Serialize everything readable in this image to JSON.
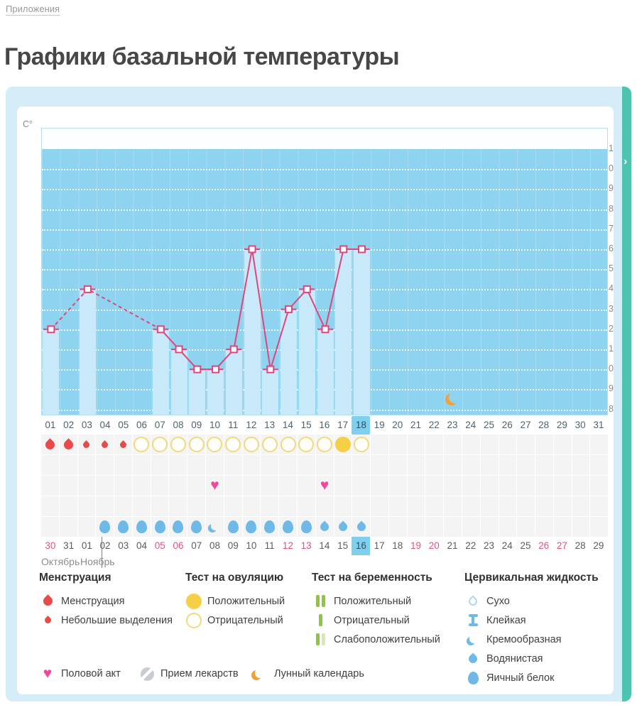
{
  "page": {
    "breadcrumb": "Приложения",
    "title": "Графики базальной температуры"
  },
  "icons": {
    "chevron_right": "›"
  },
  "colors": {
    "panel_blue": "#d5edf8",
    "accent_teal": "#4dc4ae",
    "plot_blue": "#8ed4f0",
    "bar_blue": "#c7e9f9",
    "line_pink": "#e0457c",
    "highlight_blue": "#7fd0ef",
    "menses_red": "#e84a4a",
    "test_yellow": "#f6cf49",
    "heart_pink": "#f0489c",
    "fluid_blue": "#6fb9e8",
    "weekend_red": "#e05578",
    "moon_orange": "#f2a13a",
    "pregnancy_green": "#8cc63e"
  },
  "chart_data": {
    "type": "line",
    "title": "",
    "xlabel": "",
    "ylabel": "C°",
    "ylim": [
      35.8,
      37.1
    ],
    "y_ticks": [
      "37.1",
      "37.0",
      "36.9",
      "36.8",
      "36.7",
      "36.6",
      "36.5",
      "36.4",
      "36.3",
      "36.2",
      "36.1",
      "36.0",
      "35.9",
      "35.8"
    ],
    "x_days": [
      "01",
      "02",
      "03",
      "04",
      "05",
      "06",
      "07",
      "08",
      "09",
      "10",
      "11",
      "12",
      "13",
      "14",
      "15",
      "16",
      "17",
      "18",
      "19",
      "20",
      "21",
      "22",
      "23",
      "24",
      "25",
      "26",
      "27",
      "28",
      "29",
      "30",
      "31"
    ],
    "selected_day": 18,
    "series": [
      {
        "name": "Базальная температура",
        "points": [
          {
            "day": 1,
            "t": 36.2
          },
          {
            "day": 3,
            "t": 36.4
          },
          {
            "day": 7,
            "t": 36.2
          },
          {
            "day": 8,
            "t": 36.1
          },
          {
            "day": 9,
            "t": 36.0
          },
          {
            "day": 10,
            "t": 36.0
          },
          {
            "day": 11,
            "t": 36.1
          },
          {
            "day": 12,
            "t": 36.6
          },
          {
            "day": 13,
            "t": 36.0
          },
          {
            "day": 14,
            "t": 36.3
          },
          {
            "day": 15,
            "t": 36.4
          },
          {
            "day": 16,
            "t": 36.2
          },
          {
            "day": 17,
            "t": 36.6
          },
          {
            "day": 18,
            "t": 36.6
          }
        ]
      }
    ],
    "dashed_days": [
      1,
      3,
      7
    ],
    "solid_days": [
      7,
      8,
      9,
      10,
      11,
      12,
      13,
      14,
      15,
      16,
      17,
      18
    ],
    "moon_day": 23,
    "events": {
      "menstruation": [
        {
          "day": 1,
          "size": "big"
        },
        {
          "day": 2,
          "size": "big"
        },
        {
          "day": 3,
          "size": "small"
        },
        {
          "day": 4,
          "size": "small"
        },
        {
          "day": 5,
          "size": "small"
        }
      ],
      "ovulation_tests": [
        {
          "day": 6,
          "result": "negative"
        },
        {
          "day": 7,
          "result": "negative"
        },
        {
          "day": 8,
          "result": "negative"
        },
        {
          "day": 9,
          "result": "negative"
        },
        {
          "day": 10,
          "result": "negative"
        },
        {
          "day": 11,
          "result": "negative"
        },
        {
          "day": 12,
          "result": "negative"
        },
        {
          "day": 13,
          "result": "negative"
        },
        {
          "day": 14,
          "result": "negative"
        },
        {
          "day": 15,
          "result": "negative"
        },
        {
          "day": 16,
          "result": "negative"
        },
        {
          "day": 17,
          "result": "positive"
        },
        {
          "day": 18,
          "result": "negative"
        }
      ],
      "intercourse_days": [
        10,
        16
      ],
      "cervical_fluid": [
        {
          "day": 4,
          "type": "egg-blue"
        },
        {
          "day": 5,
          "type": "egg-blue"
        },
        {
          "day": 6,
          "type": "egg-blue"
        },
        {
          "day": 7,
          "type": "egg-blue"
        },
        {
          "day": 8,
          "type": "egg-blue"
        },
        {
          "day": 9,
          "type": "egg-blue"
        },
        {
          "day": 10,
          "type": "crescent-blue"
        },
        {
          "day": 11,
          "type": "egg-blue"
        },
        {
          "day": 12,
          "type": "egg-blue"
        },
        {
          "day": 13,
          "type": "egg-blue"
        },
        {
          "day": 14,
          "type": "egg-blue"
        },
        {
          "day": 15,
          "type": "egg-blue"
        },
        {
          "day": 16,
          "type": "drop-blue"
        },
        {
          "day": 17,
          "type": "drop-blue"
        },
        {
          "day": 18,
          "type": "drop-blue"
        }
      ]
    },
    "calendar": {
      "dates": [
        {
          "label": "30",
          "weekend": true
        },
        {
          "label": "31"
        },
        {
          "label": "01"
        },
        {
          "label": "02"
        },
        {
          "label": "03"
        },
        {
          "label": "04"
        },
        {
          "label": "05",
          "weekend": true
        },
        {
          "label": "06",
          "weekend": true
        },
        {
          "label": "07"
        },
        {
          "label": "08"
        },
        {
          "label": "09"
        },
        {
          "label": "10"
        },
        {
          "label": "11"
        },
        {
          "label": "12",
          "weekend": true
        },
        {
          "label": "13",
          "weekend": true
        },
        {
          "label": "14"
        },
        {
          "label": "15"
        },
        {
          "label": "16",
          "selected": true
        },
        {
          "label": "17"
        },
        {
          "label": "18"
        },
        {
          "label": "19",
          "weekend": true
        },
        {
          "label": "20",
          "weekend": true
        },
        {
          "label": "21"
        },
        {
          "label": "22"
        },
        {
          "label": "23"
        },
        {
          "label": "24"
        },
        {
          "label": "25"
        },
        {
          "label": "26",
          "weekend": true
        },
        {
          "label": "27",
          "weekend": true
        },
        {
          "label": "28"
        },
        {
          "label": "29"
        }
      ],
      "month_boundary_after_index": 1,
      "months": [
        "Октябрь",
        "Ноябрь"
      ]
    }
  },
  "legend": {
    "sections": [
      {
        "title": "Менструация",
        "items": [
          {
            "icon": "drop-red-big",
            "label": "Менструация"
          },
          {
            "icon": "drop-red-small",
            "label": "Небольшие выделения"
          }
        ]
      },
      {
        "title": "Тест на овуляцию",
        "items": [
          {
            "icon": "circle-yellow-filled",
            "label": "Положительный"
          },
          {
            "icon": "circle-yellow-outline",
            "label": "Отрицательный"
          }
        ]
      },
      {
        "title": "Тест на беременность",
        "items": [
          {
            "icon": "bars-green-positive",
            "label": "Положительный"
          },
          {
            "icon": "bar-green-negative",
            "label": "Отрицательный"
          },
          {
            "icon": "bars-green-weak",
            "label": "Слабоположительный"
          }
        ]
      },
      {
        "title": "Цервикальная жидкость",
        "items": [
          {
            "icon": "drop-blue-outline",
            "label": "Сухо"
          },
          {
            "icon": "sticky-blue",
            "label": "Клейкая"
          },
          {
            "icon": "crescent-blue",
            "label": "Кремообразная"
          },
          {
            "icon": "drop-blue",
            "label": "Водянистая"
          },
          {
            "icon": "egg-blue",
            "label": "Яичный белок"
          }
        ]
      }
    ],
    "footer_items": [
      {
        "icon": "heart-pink",
        "label": "Половой акт"
      },
      {
        "icon": "pill-gray",
        "label": "Прием лекарств"
      },
      {
        "icon": "moon-orange",
        "label": "Лунный календарь"
      }
    ]
  }
}
